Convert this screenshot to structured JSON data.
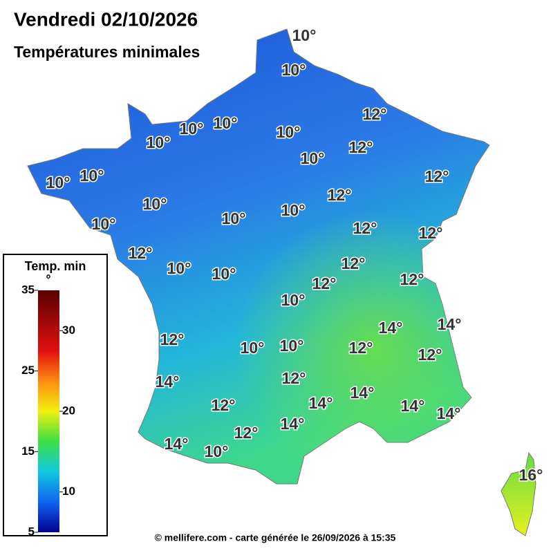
{
  "header": {
    "title": "Vendredi 02/10/2026",
    "subtitle": "Températures minimales"
  },
  "map": {
    "labels": [
      "10°",
      "10°",
      "12°",
      "10°",
      "10°",
      "10°",
      "10°",
      "12°",
      "10°",
      "10°",
      "10°",
      "12°",
      "12°",
      "10°",
      "10°",
      "10°",
      "10°",
      "12°",
      "12°",
      "12°",
      "12°",
      "10°",
      "10°",
      "12°",
      "12°",
      "10°",
      "14°",
      "14°",
      "12°",
      "10°",
      "10°",
      "12°",
      "12°",
      "14°",
      "12°",
      "14°",
      "12°",
      "14°",
      "14°",
      "14°",
      "14°",
      "12°",
      "14°",
      "10°",
      "16°"
    ]
  },
  "legend": {
    "title": "Temp. min",
    "unit": "°",
    "lim": [
      5,
      35
    ],
    "ticks": [
      35,
      30,
      25,
      20,
      15,
      10,
      5
    ]
  },
  "footer": {
    "text": "© mellifere.com - carte générée le 26/09/2026 à 15:35"
  }
}
